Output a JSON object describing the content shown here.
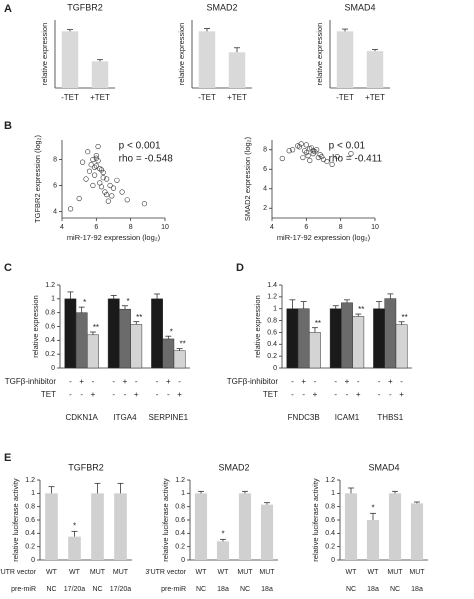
{
  "panel_labels": [
    "A",
    "B",
    "C",
    "D",
    "E"
  ],
  "chart_data": [
    {
      "type": "bar",
      "title": "TGFBR2",
      "ylabel": "relative expression",
      "categories": [
        "-TET",
        "+TET"
      ],
      "values": [
        1.0,
        0.47
      ],
      "errors": [
        0.03,
        0.03
      ],
      "color": "#d9d9d9",
      "ylim": [
        0,
        1.2
      ]
    },
    {
      "type": "bar",
      "title": "SMAD2",
      "ylabel": "relative expression",
      "categories": [
        "-TET",
        "+TET"
      ],
      "values": [
        1.0,
        0.63
      ],
      "errors": [
        0.05,
        0.08
      ],
      "color": "#d9d9d9",
      "ylim": [
        0,
        1.2
      ]
    },
    {
      "type": "bar",
      "title": "SMAD4",
      "ylabel": "relative expression",
      "categories": [
        "-TET",
        "+TET"
      ],
      "values": [
        1.0,
        0.65
      ],
      "errors": [
        0.04,
        0.03
      ],
      "color": "#d9d9d9",
      "ylim": [
        0,
        1.2
      ]
    },
    {
      "type": "scatter",
      "xlabel": "miR-17-92 expression (log₂)",
      "ylabel": "TGFBR2 expression (log₂)",
      "x": [
        5.2,
        5.5,
        5.8,
        6.0,
        6.1,
        6.3,
        5.9,
        6.4,
        6.6,
        5.7,
        6.2,
        6.8,
        7.0,
        5.4,
        6.5,
        6.0,
        5.6,
        6.9,
        7.2,
        6.3,
        5.8,
        6.1,
        6.7,
        7.5,
        5.0,
        4.5,
        6.4,
        6.2,
        5.9,
        8.8,
        7.8,
        6.0,
        6.6
      ],
      "y": [
        7.8,
        8.6,
        8.0,
        7.5,
        7.9,
        7.2,
        6.8,
        7.0,
        6.5,
        7.6,
        6.2,
        6.0,
        5.8,
        6.5,
        5.5,
        8.3,
        7.1,
        5.2,
        6.4,
        5.9,
        6.0,
        9.0,
        4.8,
        5.5,
        5.0,
        4.2,
        6.6,
        7.3,
        7.4,
        4.6,
        4.9,
        8.1,
        5.3
      ],
      "xlim": [
        4,
        10
      ],
      "ylim": [
        3.5,
        9.5
      ],
      "xticks": [
        4,
        6,
        8,
        10
      ],
      "yticks": [
        4,
        6,
        8
      ],
      "annotations": [
        "p < 0.001",
        "rho = -0.548"
      ]
    },
    {
      "type": "scatter",
      "xlabel": "miR-17-92 expression (log₂)",
      "ylabel": "SMAD2 expression (log₂)",
      "x": [
        5.2,
        5.6,
        5.9,
        6.0,
        6.2,
        6.4,
        6.5,
        6.1,
        5.8,
        6.8,
        7.0,
        6.3,
        6.6,
        5.5,
        7.2,
        6.0,
        6.9,
        5.0,
        4.6,
        7.5,
        6.2,
        5.7,
        8.6,
        6.4,
        6.7,
        7.8
      ],
      "y": [
        8.0,
        8.3,
        7.9,
        8.5,
        8.1,
        7.6,
        7.8,
        7.4,
        7.2,
        7.5,
        7.0,
        8.2,
        8.0,
        8.4,
        6.8,
        7.7,
        7.3,
        7.9,
        7.1,
        6.5,
        6.9,
        8.6,
        7.6,
        7.9,
        7.2,
        7.3
      ],
      "xlim": [
        4,
        10
      ],
      "ylim": [
        1,
        9
      ],
      "xticks": [
        4,
        6,
        8,
        10
      ],
      "yticks": [
        2,
        4,
        6,
        8
      ],
      "annotations": [
        "p < 0.01",
        "rho = -0.411"
      ]
    },
    {
      "type": "grouped_bar",
      "ylabel": "relative expression",
      "categories": [
        "CDKN1A",
        "ITGA4",
        "SERPINE1"
      ],
      "series": [
        {
          "color": "#1a1a1a",
          "values": [
            1.0,
            1.0,
            1.0
          ],
          "errors": [
            0.1,
            0.05,
            0.07
          ]
        },
        {
          "color": "#6b6b6b",
          "values": [
            0.8,
            0.85,
            0.42
          ],
          "errors": [
            0.08,
            0.05,
            0.04
          ]
        },
        {
          "color": "#d4d4d4",
          "values": [
            0.48,
            0.63,
            0.25
          ],
          "errors": [
            0.04,
            0.04,
            0.03
          ]
        }
      ],
      "stars": [
        {
          "series": 1,
          "index": 0,
          "text": "*"
        },
        {
          "series": 2,
          "index": 0,
          "text": "**"
        },
        {
          "series": 1,
          "index": 1,
          "text": "*"
        },
        {
          "series": 2,
          "index": 1,
          "text": "**"
        },
        {
          "series": 1,
          "index": 2,
          "text": "*"
        },
        {
          "series": 2,
          "index": 2,
          "text": "**"
        }
      ],
      "rows": [
        {
          "label": "TGFβ-inhibitor",
          "cells": [
            "-",
            "+",
            "-"
          ]
        },
        {
          "label": "TET",
          "cells": [
            "-",
            "-",
            "+"
          ]
        }
      ],
      "ylim": [
        0,
        1.2
      ],
      "yticks": [
        0,
        0.2,
        0.4,
        0.6,
        0.8,
        1,
        1.2
      ]
    },
    {
      "type": "grouped_bar",
      "ylabel": "relative expression",
      "categories": [
        "FNDC3B",
        "ICAM1",
        "THBS1"
      ],
      "series": [
        {
          "color": "#1a1a1a",
          "values": [
            1.0,
            1.0,
            1.0
          ],
          "errors": [
            0.15,
            0.05,
            0.12
          ]
        },
        {
          "color": "#6b6b6b",
          "values": [
            1.0,
            1.1,
            1.17
          ],
          "errors": [
            0.12,
            0.05,
            0.08
          ]
        },
        {
          "color": "#d4d4d4",
          "values": [
            0.6,
            0.87,
            0.73
          ],
          "errors": [
            0.08,
            0.04,
            0.05
          ]
        }
      ],
      "stars": [
        {
          "series": 2,
          "index": 0,
          "text": "**"
        },
        {
          "series": 2,
          "index": 1,
          "text": "**"
        },
        {
          "series": 2,
          "index": 2,
          "text": "**"
        }
      ],
      "rows": [
        {
          "label": "TGFβ-inhibitor",
          "cells": [
            "-",
            "+",
            "-"
          ]
        },
        {
          "label": "TET",
          "cells": [
            "-",
            "-",
            "+"
          ]
        }
      ],
      "ylim": [
        0,
        1.4
      ],
      "yticks": [
        0,
        0.2,
        0.4,
        0.6,
        0.8,
        1,
        1.2,
        1.4
      ]
    },
    {
      "type": "bar",
      "title": "TGFBR2",
      "ylabel": "relative luciferase activity",
      "values": [
        1.0,
        0.35,
        1.0,
        1.0
      ],
      "errors": [
        0.1,
        0.08,
        0.15,
        0.15
      ],
      "color": "#d0d0d0",
      "stars": [
        {
          "index": 1,
          "text": "*"
        }
      ],
      "rows": [
        {
          "label": "3'UTR vector",
          "cells": [
            "WT",
            "WT",
            "MUT",
            "MUT"
          ]
        },
        {
          "label": "pre-miR",
          "cells": [
            "NC",
            "17/20a",
            "NC",
            "17/20a"
          ]
        }
      ],
      "ylim": [
        0,
        1.2
      ],
      "yticks": [
        0,
        0.2,
        0.4,
        0.6,
        0.8,
        1,
        1.2
      ]
    },
    {
      "type": "bar",
      "title": "SMAD2",
      "ylabel": "relative luciferase activity",
      "values": [
        1.0,
        0.28,
        1.0,
        0.83
      ],
      "errors": [
        0.03,
        0.03,
        0.03,
        0.03
      ],
      "color": "#d0d0d0",
      "stars": [
        {
          "index": 1,
          "text": "*"
        }
      ],
      "rows": [
        {
          "label": "3'UTR vector",
          "cells": [
            "WT",
            "WT",
            "MUT",
            "MUT"
          ]
        },
        {
          "label": "pre-miR",
          "cells": [
            "NC",
            "18a",
            "NC",
            "18a"
          ]
        }
      ],
      "ylim": [
        0,
        1.2
      ],
      "yticks": [
        0,
        0.2,
        0.4,
        0.6,
        0.8,
        1,
        1.2
      ]
    },
    {
      "type": "bar",
      "title": "SMAD4",
      "ylabel": "relative luciferase activity",
      "values": [
        1.0,
        0.6,
        1.0,
        0.85
      ],
      "errors": [
        0.08,
        0.1,
        0.03,
        0.02
      ],
      "color": "#d0d0d0",
      "stars": [
        {
          "index": 1,
          "text": "*"
        }
      ],
      "rows": [
        {
          "cells": [
            "WT",
            "WT",
            "MUT",
            "MUT"
          ]
        },
        {
          "cells": [
            "NC",
            "18a",
            "NC",
            "18a"
          ]
        }
      ],
      "ylim": [
        0,
        1.2
      ],
      "yticks": [
        0,
        0.2,
        0.4,
        0.6,
        0.8,
        1,
        1.2
      ]
    }
  ]
}
